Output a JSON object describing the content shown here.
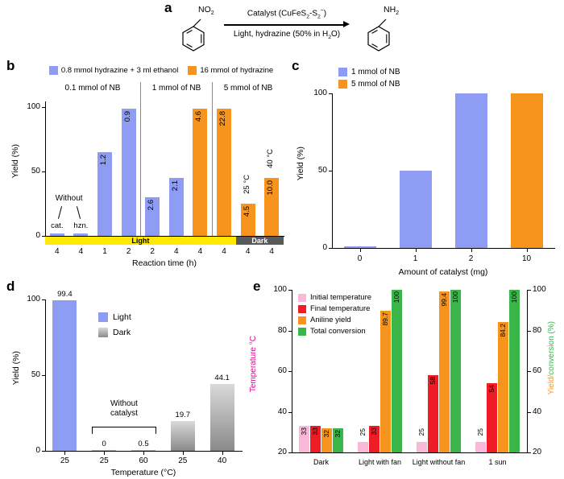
{
  "panel_letters": {
    "a": "a",
    "b": "b",
    "c": "c",
    "d": "d",
    "e": "e"
  },
  "panel_a": {
    "reactant_group_main": "NO",
    "reactant_group_sub": "2",
    "product_group_main": "NH",
    "product_group_sub": "2",
    "above_arrow": {
      "p1": "Catalyst (CuFeS",
      "s1": "2",
      "p2": "-S",
      "s2": "2",
      "sup": "−",
      "p3": ")"
    },
    "below_arrow": {
      "p1": "Light, hydrazine (50% in H",
      "s1": "2",
      "p2": "O)"
    }
  },
  "chart_data": [
    {
      "panel": "b",
      "type": "bar",
      "ylabel": "Yield (%)",
      "xlabel": "Reaction time (h)",
      "ylim": [
        0,
        105
      ],
      "yticks": [
        0,
        50,
        100
      ],
      "colors": {
        "blue": "#8e9cf3",
        "orange": "#f7941e"
      },
      "legend": [
        {
          "label": "0.8 mmol hydrazine + 3 ml ethanol",
          "color": "#8e9cf3"
        },
        {
          "label": "16 mmol of hydrazine",
          "color": "#f7941e"
        }
      ],
      "section_headers": [
        "0.1 mmol of NB",
        "1 mmol of NB",
        "5 mmol of NB"
      ],
      "annotation": {
        "text": "Without"
      },
      "bars": [
        {
          "time": "4",
          "yield": 2,
          "series": "blue",
          "note": "cat."
        },
        {
          "time": "4",
          "yield": 2,
          "series": "blue",
          "note": "hzn."
        },
        {
          "time": "1",
          "yield": 65,
          "series": "blue",
          "value_label": "1.2"
        },
        {
          "time": "2",
          "yield": 99,
          "series": "blue",
          "value_label": "0.9"
        },
        {
          "time": "2",
          "yield": 30,
          "series": "blue",
          "value_label": "2.6"
        },
        {
          "time": "4",
          "yield": 45,
          "series": "blue",
          "value_label": "2.1"
        },
        {
          "time": "4",
          "yield": 99,
          "series": "orange",
          "value_label": "4.6"
        },
        {
          "time": "4",
          "yield": 99,
          "series": "orange",
          "value_label": "22.8"
        },
        {
          "time": "4",
          "yield": 25,
          "series": "orange",
          "value_label": "4.5",
          "condition": "25 °C"
        },
        {
          "time": "4",
          "yield": 45,
          "series": "orange",
          "value_label": "10.0",
          "condition": "40 °C"
        }
      ],
      "light_dark_strip": [
        {
          "label": "Light",
          "color": "#ffe900",
          "text_color": "#000000",
          "bars": 8
        },
        {
          "label": "Dark",
          "color": "#58595b",
          "text_color": "#ffffff",
          "bars": 2
        }
      ]
    },
    {
      "panel": "c",
      "type": "bar",
      "ylabel": "Yield (%)",
      "xlabel": "Amount of catalyst (mg)",
      "ylim": [
        0,
        100
      ],
      "yticks": [
        0,
        50,
        100
      ],
      "colors": {
        "blue": "#8e9cf3",
        "orange": "#f7941e"
      },
      "legend": [
        {
          "label": "1 mmol of NB",
          "color": "#8e9cf3"
        },
        {
          "label": "5 mmol of NB",
          "color": "#f7941e"
        }
      ],
      "categories": [
        "0",
        "1",
        "2",
        "10"
      ],
      "bars": [
        {
          "catalyst_mg": "0",
          "yield": 1,
          "series": "blue"
        },
        {
          "catalyst_mg": "1",
          "yield": 50,
          "series": "blue"
        },
        {
          "catalyst_mg": "2",
          "yield": 100,
          "series": "blue"
        },
        {
          "catalyst_mg": "10",
          "yield": 100,
          "series": "orange"
        }
      ]
    },
    {
      "panel": "d",
      "type": "bar",
      "ylabel": "Yield (%)",
      "xlabel": "Temperature (°C)",
      "ylim": [
        0,
        100
      ],
      "yticks": [
        0,
        50,
        100
      ],
      "colors": {
        "light": "#8e9cf3"
      },
      "legend": [
        {
          "label": "Light",
          "style": "solid",
          "color": "#8e9cf3"
        },
        {
          "label": "Dark",
          "style": "gradient-gray"
        }
      ],
      "annotation": {
        "text": "Without catalyst",
        "spans_bars": [
          1,
          2
        ]
      },
      "bars": [
        {
          "temperature": "25",
          "yield": 99.4,
          "series": "light",
          "label": "99.4"
        },
        {
          "temperature": "25",
          "yield": 0,
          "series": "dark",
          "label": "0"
        },
        {
          "temperature": "60",
          "yield": 0.5,
          "series": "dark",
          "label": "0.5"
        },
        {
          "temperature": "25",
          "yield": 19.7,
          "series": "dark",
          "label": "19.7"
        },
        {
          "temperature": "40",
          "yield": 44.1,
          "series": "dark",
          "label": "44.1"
        }
      ]
    },
    {
      "panel": "e",
      "type": "grouped-bar",
      "ylabel_left": "Temperature °C",
      "ylabel_left_color": "#ec008c",
      "ylabel_right_parts": [
        {
          "text": "Yield/",
          "color": "#f7941e"
        },
        {
          "text": "conversion (%)",
          "color": "#3ab54a"
        }
      ],
      "ylim": [
        20,
        100
      ],
      "yticks": [
        20,
        40,
        60,
        80,
        100
      ],
      "categories": [
        "Dark",
        "Light with fan",
        "Light without fan",
        "1 sun"
      ],
      "series": [
        {
          "name": "Initial temperature",
          "color": "#f9b8d8",
          "values": [
            33,
            25,
            25,
            25
          ]
        },
        {
          "name": "Final temperature",
          "color": "#ee1c25",
          "values": [
            33,
            33,
            58,
            54
          ]
        },
        {
          "name": "Aniline yield",
          "color": "#f7941e",
          "values": [
            32,
            89.7,
            99.4,
            84.2
          ]
        },
        {
          "name": "Total conversion",
          "color": "#3ab54a",
          "values": [
            32,
            100,
            100,
            100
          ]
        }
      ]
    }
  ]
}
